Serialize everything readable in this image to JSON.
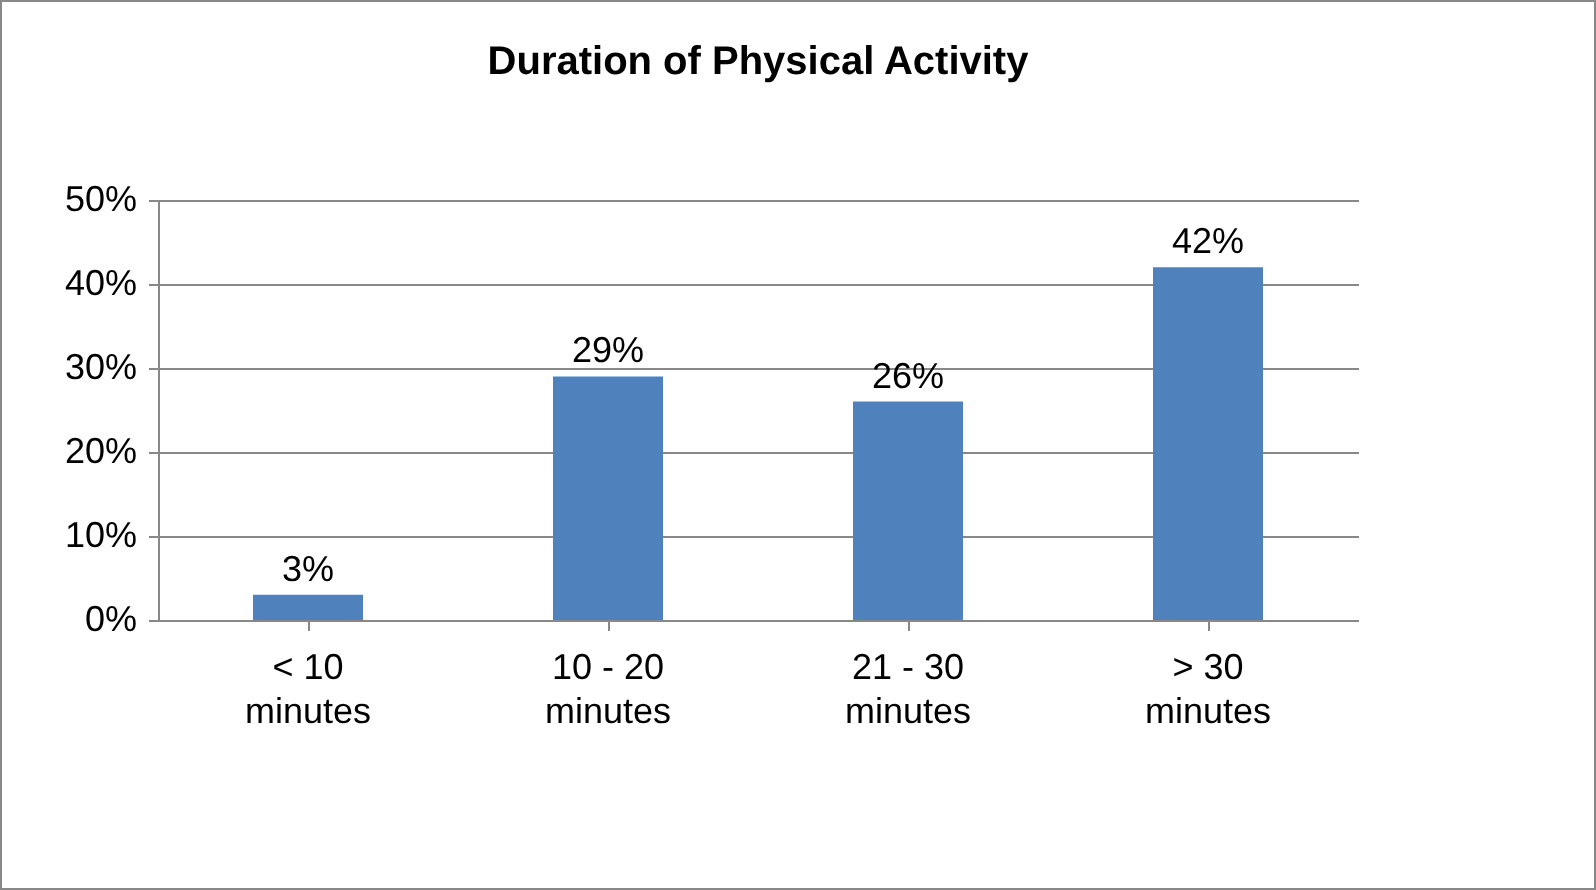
{
  "chart_data": {
    "type": "bar",
    "title": "Duration of Physical Activity",
    "categories": [
      "< 10 minutes",
      "10 - 20 minutes",
      "21 - 30 minutes",
      "> 30 minutes"
    ],
    "values": [
      3,
      29,
      26,
      42
    ],
    "value_labels": [
      "3%",
      "29%",
      "26%",
      "42%"
    ],
    "color": "#4f81bd",
    "ylim": [
      0,
      50
    ],
    "yticks": [
      {
        "value": 0,
        "label": "0%"
      },
      {
        "value": 10,
        "label": "10%"
      },
      {
        "value": 20,
        "label": "20%"
      },
      {
        "value": 30,
        "label": "30%"
      },
      {
        "value": 40,
        "label": "40%"
      },
      {
        "value": 50,
        "label": "50%"
      }
    ],
    "grid": "y"
  }
}
